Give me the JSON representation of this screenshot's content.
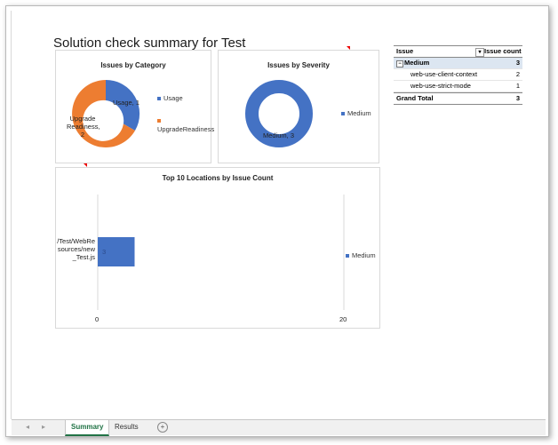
{
  "title": "Solution check summary for Test",
  "colors": {
    "blue": "#4472c4",
    "orange": "#ed7d31"
  },
  "category_chart": {
    "title": "Issues by Category",
    "legend": [
      "Usage",
      "UpgradeReadiness"
    ],
    "labels": [
      "Usage, 1",
      "Upgrade Readiness, 2"
    ],
    "chart_data": {
      "type": "pie",
      "title": "Issues by Category",
      "categories": [
        "Usage",
        "UpgradeReadiness"
      ],
      "values": [
        1,
        2
      ]
    }
  },
  "severity_chart": {
    "title": "Issues by Severity",
    "legend": [
      "Medium"
    ],
    "labels": [
      "Medium, 3"
    ],
    "chart_data": {
      "type": "pie",
      "title": "Issues by Severity",
      "categories": [
        "Medium"
      ],
      "values": [
        3
      ]
    }
  },
  "locations_chart": {
    "title": "Top 10 Locations by Issue Count",
    "category_label": "/Test/WebResources/new_Test.js",
    "bar_label": "3",
    "legend": [
      "Medium"
    ],
    "chart_data": {
      "type": "bar",
      "title": "Top 10 Locations by Issue Count",
      "categories": [
        "/Test/WebResources/new_Test.js"
      ],
      "series": [
        {
          "name": "Medium",
          "values": [
            3
          ]
        }
      ],
      "xlim": [
        0,
        20
      ],
      "ticks": [
        "0",
        "20"
      ]
    }
  },
  "pivot": {
    "header_issue": "Issue",
    "header_count": "Issue count",
    "group": {
      "label": "Medium",
      "count": "3"
    },
    "rows": [
      {
        "label": "web-use-client-context",
        "count": "2"
      },
      {
        "label": "web-use-strict-mode",
        "count": "1"
      }
    ],
    "total": {
      "label": "Grand Total",
      "count": "3"
    }
  },
  "tabs": {
    "summary": "Summary",
    "results": "Results",
    "add": "+"
  }
}
